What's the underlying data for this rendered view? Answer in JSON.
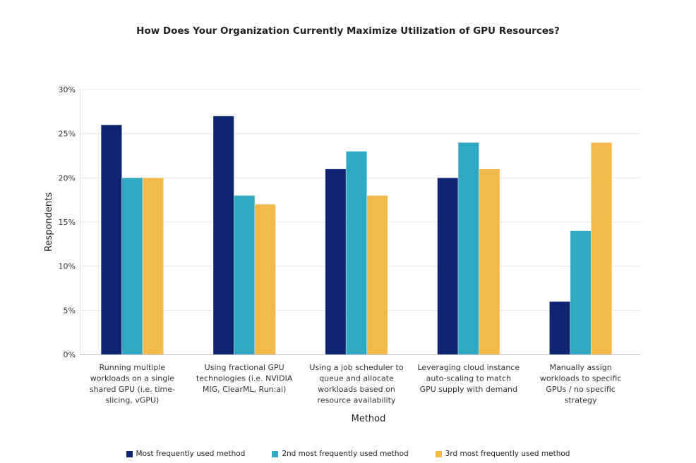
{
  "chart_data": {
    "type": "bar",
    "title": "How Does Your Organization Currently Maximize Utilization of GPU Resources?",
    "xlabel": "Method",
    "ylabel": "Respondents",
    "ylim": [
      0,
      30
    ],
    "yticks": [
      0,
      5,
      10,
      15,
      20,
      25,
      30
    ],
    "ytick_labels": [
      "0%",
      "5%",
      "10%",
      "15%",
      "20%",
      "25%",
      "30%"
    ],
    "grid": true,
    "legend_position": "bottom",
    "categories": [
      "Running multiple workloads on a single shared GPU (i.e. time-slicing, vGPU)",
      "Using fractional GPU technologies (i.e. NVIDIA MIG, ClearML, Run:ai)",
      "Using a job scheduler to queue and allocate workloads based on resource availability",
      "Leveraging cloud instance auto-scaling to match GPU supply with demand",
      "Manually assign workloads to specific GPUs / no specific strategy"
    ],
    "category_lines": [
      [
        "Running multiple",
        "workloads on a single",
        "shared GPU (i.e. time-",
        "slicing, vGPU)"
      ],
      [
        "Using fractional GPU",
        "technologies (i.e. NVIDIA",
        "MIG, ClearML, Run:ai)"
      ],
      [
        "Using a job scheduler to",
        "queue and allocate",
        "workloads based on",
        "resource availability"
      ],
      [
        "Leveraging cloud instance",
        "auto-scaling to match",
        "GPU supply with demand"
      ],
      [
        "Manually assign",
        "workloads to specific",
        "GPUs / no specific",
        "strategy"
      ]
    ],
    "series": [
      {
        "name": "Most frequently used method",
        "color": "#0e2470",
        "values": [
          26,
          27,
          21,
          20,
          6
        ]
      },
      {
        "name": "2nd most frequently used method",
        "color": "#2fa8c1",
        "values": [
          20,
          18,
          23,
          24,
          14
        ]
      },
      {
        "name": "3rd most frequently used method",
        "color": "#f3b94b",
        "values": [
          20,
          17,
          18,
          21,
          24
        ]
      }
    ]
  }
}
